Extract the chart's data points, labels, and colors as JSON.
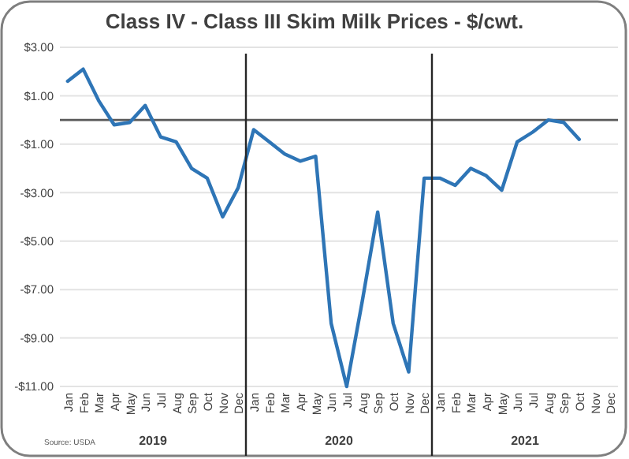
{
  "chart_data": {
    "type": "line",
    "title": "Class IV - Class III Skim Milk Prices - $/cwt.",
    "categories": [
      "Jan",
      "Feb",
      "Mar",
      "Apr",
      "May",
      "Jun",
      "Jul",
      "Aug",
      "Sep",
      "Oct",
      "Nov",
      "Dec",
      "Jan",
      "Feb",
      "Mar",
      "Apr",
      "May",
      "Jun",
      "Jul",
      "Aug",
      "Sep",
      "Oct",
      "Nov",
      "Dec",
      "Jan",
      "Feb",
      "Mar",
      "Apr",
      "May",
      "Jun",
      "Jul",
      "Aug",
      "Sep",
      "Oct",
      "Nov",
      "Dec"
    ],
    "series": [
      {
        "color": "#2e75b6",
        "values": [
          1.6,
          2.1,
          0.8,
          -0.2,
          -0.1,
          0.6,
          -0.7,
          -0.9,
          -2.0,
          -2.4,
          -4.0,
          -2.8,
          -0.4,
          -0.9,
          -1.4,
          -1.7,
          -1.5,
          -8.4,
          -11.0,
          -7.5,
          -3.8,
          -8.4,
          -10.4,
          -2.4,
          -2.4,
          -2.7,
          -2.0,
          -2.3,
          -2.9,
          -0.9,
          -0.5,
          0.0,
          -0.1,
          -0.8,
          null,
          null
        ]
      }
    ],
    "ylim": [
      -11,
      3
    ],
    "yticks": [
      {
        "value": 3,
        "label": "$3.00"
      },
      {
        "value": 1,
        "label": "$1.00"
      },
      {
        "value": -1,
        "label": "-$1.00"
      },
      {
        "value": -3,
        "label": "-$3.00"
      },
      {
        "value": -5,
        "label": "-$5.00"
      },
      {
        "value": -7,
        "label": "-$7.00"
      },
      {
        "value": -9,
        "label": "-$9.00"
      },
      {
        "value": -11,
        "label": "-$11.00"
      }
    ],
    "grid": "y",
    "marker": "none",
    "line_style": "solid",
    "ref_lines": [
      {
        "axis": "y",
        "value": 0,
        "color": "#595959"
      }
    ],
    "annotations": [
      "Source: USDA",
      "2019",
      "2020",
      "2021"
    ]
  }
}
